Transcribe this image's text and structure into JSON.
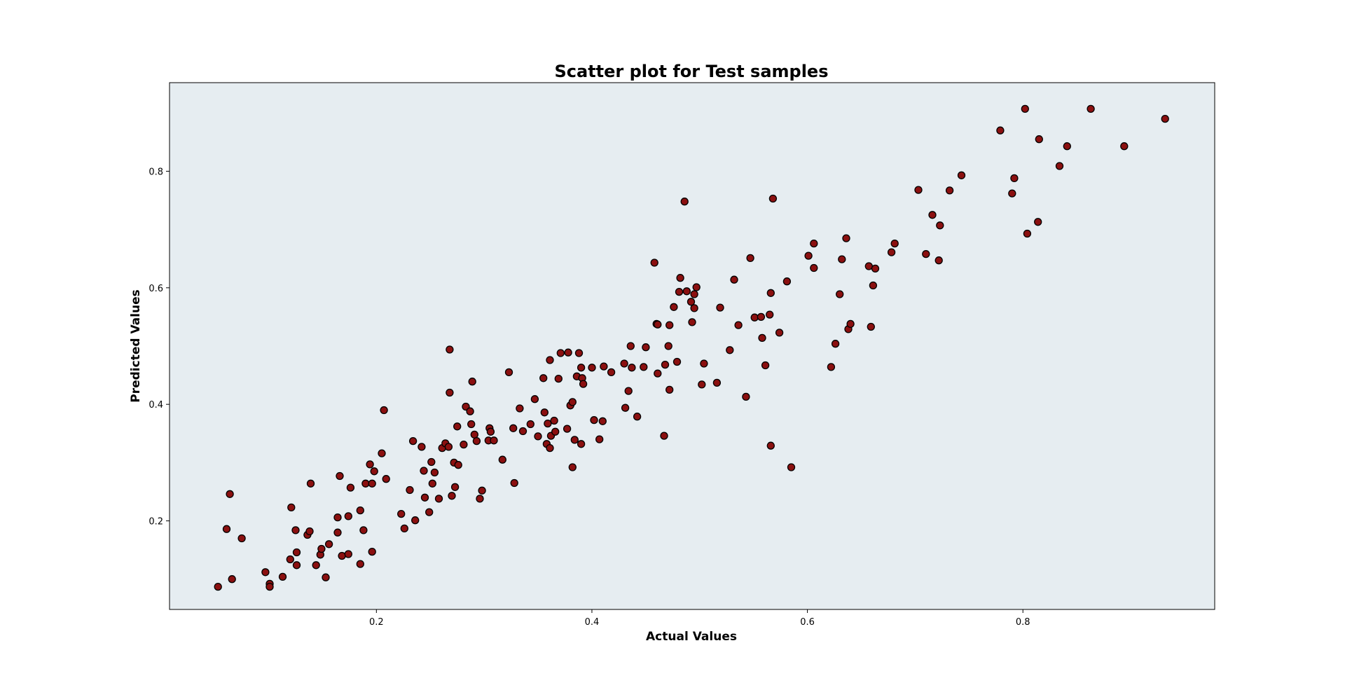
{
  "chart_data": {
    "type": "scatter",
    "title": "Scatter plot for Test samples",
    "xlabel": "Actual Values",
    "ylabel": "Predicted Values",
    "xlim": [
      0.008,
      0.978
    ],
    "ylim": [
      0.048,
      0.952
    ],
    "xticks": [
      0.2,
      0.4,
      0.6,
      0.8
    ],
    "yticks": [
      0.2,
      0.4,
      0.6,
      0.8
    ],
    "xtick_labels": [
      "0.2",
      "0.4",
      "0.6",
      "0.8"
    ],
    "ytick_labels": [
      "0.2",
      "0.4",
      "0.6",
      "0.8"
    ],
    "grid": false,
    "legend": "none",
    "colors": {
      "plot_background": "#e6edf1",
      "marker_fill": "#8b1010",
      "marker_edge": "#000000"
    },
    "series": [
      {
        "points": [
          [
            0.053,
            0.087
          ],
          [
            0.061,
            0.186
          ],
          [
            0.064,
            0.246
          ],
          [
            0.066,
            0.1
          ],
          [
            0.075,
            0.17
          ],
          [
            0.097,
            0.112
          ],
          [
            0.101,
            0.092
          ],
          [
            0.101,
            0.087
          ],
          [
            0.113,
            0.104
          ],
          [
            0.12,
            0.134
          ],
          [
            0.121,
            0.223
          ],
          [
            0.125,
            0.184
          ],
          [
            0.126,
            0.146
          ],
          [
            0.126,
            0.124
          ],
          [
            0.136,
            0.176
          ],
          [
            0.138,
            0.182
          ],
          [
            0.139,
            0.264
          ],
          [
            0.144,
            0.124
          ],
          [
            0.148,
            0.142
          ],
          [
            0.149,
            0.152
          ],
          [
            0.153,
            0.103
          ],
          [
            0.156,
            0.16
          ],
          [
            0.164,
            0.206
          ],
          [
            0.164,
            0.18
          ],
          [
            0.166,
            0.277
          ],
          [
            0.168,
            0.14
          ],
          [
            0.174,
            0.208
          ],
          [
            0.174,
            0.143
          ],
          [
            0.176,
            0.257
          ],
          [
            0.185,
            0.218
          ],
          [
            0.185,
            0.126
          ],
          [
            0.188,
            0.184
          ],
          [
            0.19,
            0.264
          ],
          [
            0.194,
            0.297
          ],
          [
            0.196,
            0.147
          ],
          [
            0.196,
            0.264
          ],
          [
            0.198,
            0.285
          ],
          [
            0.205,
            0.316
          ],
          [
            0.207,
            0.39
          ],
          [
            0.209,
            0.272
          ],
          [
            0.223,
            0.212
          ],
          [
            0.226,
            0.187
          ],
          [
            0.231,
            0.253
          ],
          [
            0.234,
            0.337
          ],
          [
            0.236,
            0.201
          ],
          [
            0.242,
            0.327
          ],
          [
            0.244,
            0.286
          ],
          [
            0.245,
            0.24
          ],
          [
            0.249,
            0.215
          ],
          [
            0.251,
            0.301
          ],
          [
            0.252,
            0.264
          ],
          [
            0.254,
            0.283
          ],
          [
            0.258,
            0.238
          ],
          [
            0.261,
            0.325
          ],
          [
            0.264,
            0.333
          ],
          [
            0.267,
            0.327
          ],
          [
            0.268,
            0.42
          ],
          [
            0.268,
            0.494
          ],
          [
            0.27,
            0.243
          ],
          [
            0.272,
            0.3
          ],
          [
            0.273,
            0.258
          ],
          [
            0.275,
            0.362
          ],
          [
            0.276,
            0.296
          ],
          [
            0.281,
            0.331
          ],
          [
            0.283,
            0.396
          ],
          [
            0.287,
            0.388
          ],
          [
            0.288,
            0.366
          ],
          [
            0.289,
            0.439
          ],
          [
            0.291,
            0.348
          ],
          [
            0.293,
            0.337
          ],
          [
            0.296,
            0.238
          ],
          [
            0.298,
            0.252
          ],
          [
            0.304,
            0.338
          ],
          [
            0.305,
            0.359
          ],
          [
            0.306,
            0.353
          ],
          [
            0.309,
            0.338
          ],
          [
            0.317,
            0.305
          ],
          [
            0.323,
            0.455
          ],
          [
            0.327,
            0.359
          ],
          [
            0.328,
            0.265
          ],
          [
            0.333,
            0.393
          ],
          [
            0.336,
            0.354
          ],
          [
            0.343,
            0.366
          ],
          [
            0.347,
            0.409
          ],
          [
            0.35,
            0.345
          ],
          [
            0.355,
            0.445
          ],
          [
            0.356,
            0.386
          ],
          [
            0.358,
            0.332
          ],
          [
            0.359,
            0.367
          ],
          [
            0.361,
            0.325
          ],
          [
            0.361,
            0.476
          ],
          [
            0.362,
            0.346
          ],
          [
            0.365,
            0.372
          ],
          [
            0.366,
            0.353
          ],
          [
            0.369,
            0.444
          ],
          [
            0.371,
            0.488
          ],
          [
            0.377,
            0.358
          ],
          [
            0.378,
            0.489
          ],
          [
            0.38,
            0.398
          ],
          [
            0.382,
            0.404
          ],
          [
            0.382,
            0.292
          ],
          [
            0.384,
            0.339
          ],
          [
            0.386,
            0.448
          ],
          [
            0.388,
            0.488
          ],
          [
            0.39,
            0.332
          ],
          [
            0.39,
            0.463
          ],
          [
            0.391,
            0.445
          ],
          [
            0.392,
            0.435
          ],
          [
            0.4,
            0.463
          ],
          [
            0.402,
            0.373
          ],
          [
            0.407,
            0.34
          ],
          [
            0.41,
            0.371
          ],
          [
            0.411,
            0.465
          ],
          [
            0.418,
            0.455
          ],
          [
            0.43,
            0.47
          ],
          [
            0.431,
            0.394
          ],
          [
            0.434,
            0.423
          ],
          [
            0.436,
            0.5
          ],
          [
            0.437,
            0.463
          ],
          [
            0.442,
            0.379
          ],
          [
            0.448,
            0.464
          ],
          [
            0.45,
            0.498
          ],
          [
            0.458,
            0.643
          ],
          [
            0.46,
            0.538
          ],
          [
            0.461,
            0.453
          ],
          [
            0.461,
            0.537
          ],
          [
            0.467,
            0.346
          ],
          [
            0.468,
            0.468
          ],
          [
            0.471,
            0.5
          ],
          [
            0.472,
            0.425
          ],
          [
            0.472,
            0.536
          ],
          [
            0.476,
            0.567
          ],
          [
            0.479,
            0.473
          ],
          [
            0.481,
            0.593
          ],
          [
            0.482,
            0.617
          ],
          [
            0.486,
            0.748
          ],
          [
            0.488,
            0.594
          ],
          [
            0.492,
            0.576
          ],
          [
            0.493,
            0.541
          ],
          [
            0.495,
            0.565
          ],
          [
            0.495,
            0.589
          ],
          [
            0.497,
            0.601
          ],
          [
            0.502,
            0.434
          ],
          [
            0.504,
            0.47
          ],
          [
            0.516,
            0.437
          ],
          [
            0.519,
            0.566
          ],
          [
            0.528,
            0.493
          ],
          [
            0.532,
            0.614
          ],
          [
            0.536,
            0.536
          ],
          [
            0.543,
            0.413
          ],
          [
            0.547,
            0.651
          ],
          [
            0.551,
            0.549
          ],
          [
            0.557,
            0.55
          ],
          [
            0.558,
            0.514
          ],
          [
            0.561,
            0.467
          ],
          [
            0.565,
            0.554
          ],
          [
            0.566,
            0.329
          ],
          [
            0.566,
            0.591
          ],
          [
            0.568,
            0.753
          ],
          [
            0.574,
            0.523
          ],
          [
            0.581,
            0.611
          ],
          [
            0.585,
            0.292
          ],
          [
            0.601,
            0.655
          ],
          [
            0.606,
            0.676
          ],
          [
            0.606,
            0.634
          ],
          [
            0.622,
            0.464
          ],
          [
            0.626,
            0.504
          ],
          [
            0.63,
            0.589
          ],
          [
            0.632,
            0.649
          ],
          [
            0.636,
            0.685
          ],
          [
            0.638,
            0.529
          ],
          [
            0.64,
            0.538
          ],
          [
            0.657,
            0.637
          ],
          [
            0.659,
            0.533
          ],
          [
            0.661,
            0.604
          ],
          [
            0.663,
            0.633
          ],
          [
            0.678,
            0.661
          ],
          [
            0.681,
            0.676
          ],
          [
            0.703,
            0.768
          ],
          [
            0.71,
            0.658
          ],
          [
            0.716,
            0.725
          ],
          [
            0.722,
            0.647
          ],
          [
            0.723,
            0.707
          ],
          [
            0.732,
            0.767
          ],
          [
            0.743,
            0.793
          ],
          [
            0.779,
            0.87
          ],
          [
            0.79,
            0.762
          ],
          [
            0.792,
            0.788
          ],
          [
            0.802,
            0.907
          ],
          [
            0.804,
            0.693
          ],
          [
            0.814,
            0.713
          ],
          [
            0.815,
            0.855
          ],
          [
            0.834,
            0.809
          ],
          [
            0.841,
            0.843
          ],
          [
            0.863,
            0.907
          ],
          [
            0.894,
            0.843
          ],
          [
            0.932,
            0.89
          ]
        ]
      }
    ]
  }
}
